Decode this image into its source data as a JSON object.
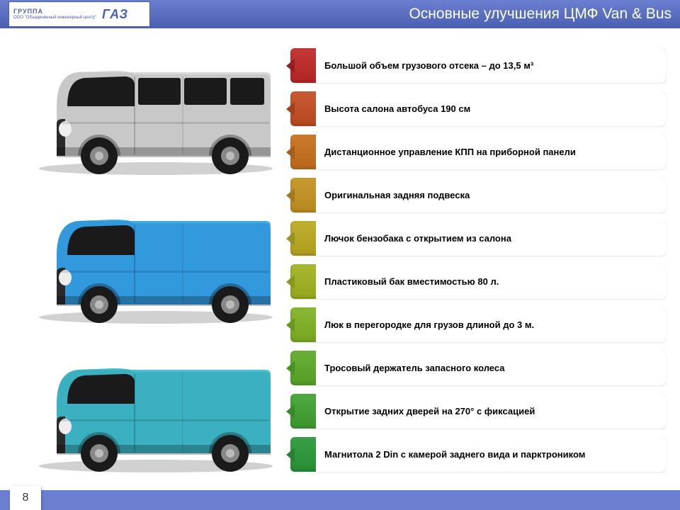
{
  "header": {
    "logo_group": "ГРУППА",
    "logo_brand": "ГАЗ",
    "logo_sub": "ООО \"Объединенный инженерный центр\"",
    "title": "Основные  улучшения ЦМФ Van & Bus",
    "bg_gradient_top": "#6a7fd0",
    "bg_gradient_bottom": "#4a5fb0"
  },
  "vehicles": [
    {
      "name": "silver-minibus",
      "body_color": "#c8c8c8",
      "roof_color": "#d8d8d8",
      "window_color": "#1a1a1a",
      "has_side_windows": true
    },
    {
      "name": "blue-van-dark",
      "body_color": "#3399dd",
      "roof_color": "#44aadd",
      "window_color": "#1a1a1a",
      "has_side_windows": false
    },
    {
      "name": "teal-van",
      "body_color": "#3bb0c0",
      "roof_color": "#4cc0d0",
      "window_color": "#1a1a1a",
      "has_side_windows": false
    }
  ],
  "features": [
    {
      "text": "Большой объем грузового отсека – до 13,5 м³",
      "color": "#c43838",
      "marker": "#902020"
    },
    {
      "text": "Высота салона автобуса 190 см",
      "color": "#c85a34",
      "marker": "#a04020"
    },
    {
      "text": "Дистанционное управление КПП на приборной панели",
      "color": "#cc7a2e",
      "marker": "#a06020"
    },
    {
      "text": "Оригинальная задняя подвеска",
      "color": "#c89a30",
      "marker": "#a07a20"
    },
    {
      "text": "Лючок бензобака с открытием из салона",
      "color": "#c0b030",
      "marker": "#989020"
    },
    {
      "text": "Пластиковый бак вместимостью 80 л.",
      "color": "#a8b830",
      "marker": "#889820"
    },
    {
      "text": "Люк в перегородке для грузов длиной до 3 м.",
      "color": "#88b834",
      "marker": "#689824"
    },
    {
      "text": "Тросовый держатель запасного колеса",
      "color": "#68b038",
      "marker": "#489028"
    },
    {
      "text": "Открытие задних дверей на  270° с фиксацией",
      "color": "#50a840",
      "marker": "#388830"
    },
    {
      "text": "Магнитола 2 Din с камерой заднего вида и парктроником",
      "color": "#3aa048",
      "marker": "#2a8038"
    }
  ],
  "footer": {
    "page": "8",
    "bg": "#6a7fd0"
  }
}
